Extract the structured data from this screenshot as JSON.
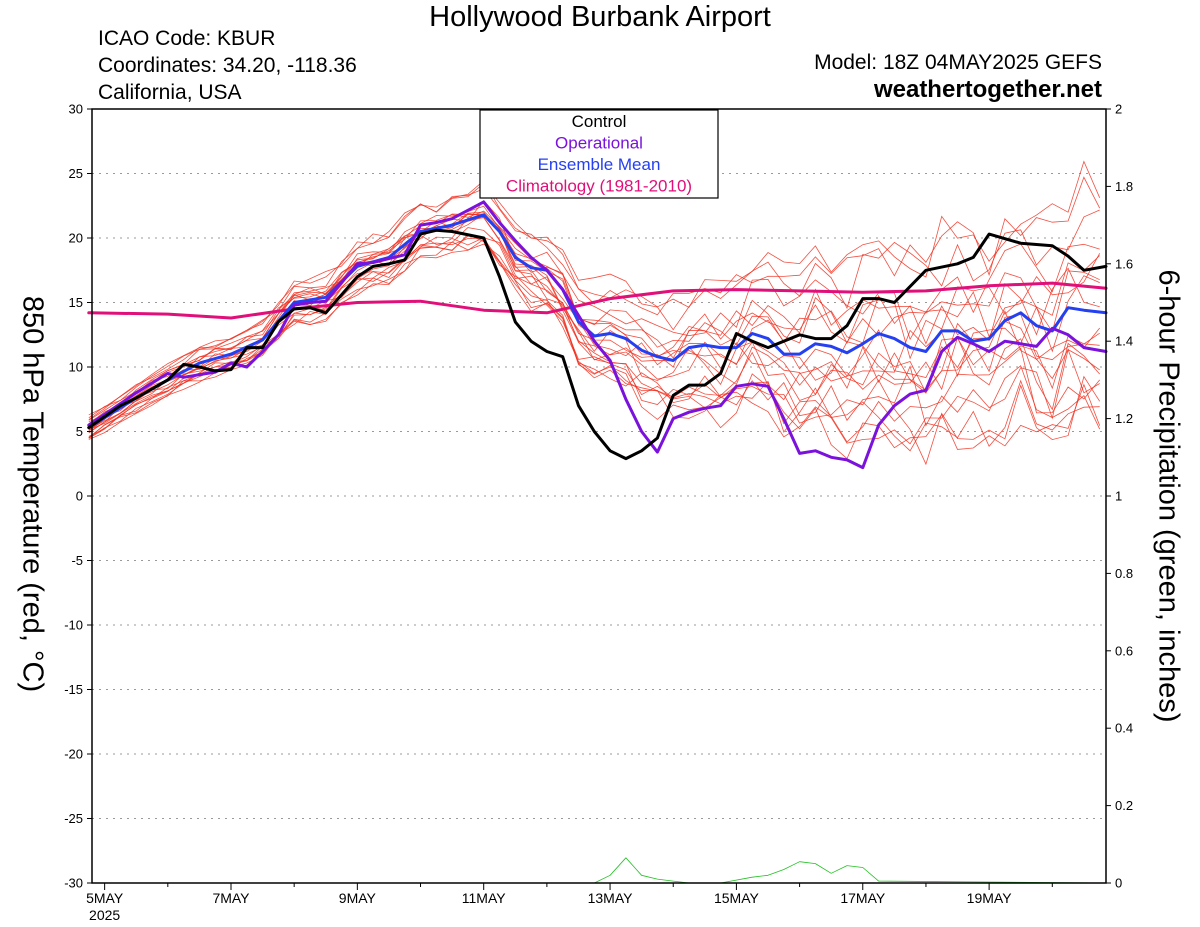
{
  "header": {
    "title": "Hollywood Burbank Airport",
    "icao": "ICAO Code: KBUR",
    "coordinates": "Coordinates: 34.20, -118.36",
    "region": "California, USA",
    "model": "Model: 18Z 04MAY2025 GEFS",
    "site": "weathertogether.net"
  },
  "colors": {
    "control": "#000000",
    "operational": "#7a12dc",
    "ensemble_mean": "#2440f0",
    "climatology": "#e0107a",
    "members": "#f03020",
    "precip": "#22c022",
    "site": "#1e90ff",
    "grid": "#9a9a9a"
  },
  "chart_data": {
    "type": "line",
    "xlabel": "",
    "ylabel": "850 hPa Temperature (red, °C)",
    "y2label": "6-hour Precipitation (green, inches)",
    "x_unit": "days since 5 May 2025 00Z",
    "xlim": [
      -0.2,
      15.85
    ],
    "ylim": [
      -30,
      30
    ],
    "y2lim": [
      0,
      2
    ],
    "grid": true,
    "legend_position": "top-center",
    "x_ticks": [
      {
        "x": 0,
        "label": "5MAY",
        "sublabel": "2025"
      },
      {
        "x": 2,
        "label": "7MAY"
      },
      {
        "x": 4,
        "label": "9MAY"
      },
      {
        "x": 6,
        "label": "11MAY"
      },
      {
        "x": 8,
        "label": "13MAY"
      },
      {
        "x": 10,
        "label": "15MAY"
      },
      {
        "x": 12,
        "label": "17MAY"
      },
      {
        "x": 14,
        "label": "19MAY"
      }
    ],
    "y_ticks": [
      "-30",
      "-25",
      "-20",
      "-15",
      "-10",
      "-5",
      "0",
      "5",
      "10",
      "15",
      "20",
      "25",
      "30"
    ],
    "y2_ticks": [
      "0",
      "0.2",
      "0.4",
      "0.6",
      "0.8",
      "1",
      "1.2",
      "1.4",
      "1.6",
      "1.8",
      "2"
    ],
    "legend": [
      {
        "label": "Control",
        "color": "#000000"
      },
      {
        "label": "Operational",
        "color": "#7a12dc"
      },
      {
        "label": "Ensemble Mean",
        "color": "#2440f0"
      },
      {
        "label": "Climatology (1981-2010)",
        "color": "#e0107a"
      }
    ],
    "series": [
      {
        "name": "Climatology (1981-2010)",
        "axis": "left",
        "width": 3,
        "x": [
          -0.25,
          1,
          2,
          3,
          4,
          5,
          6,
          7,
          8,
          9,
          10,
          11,
          12,
          13,
          14,
          15,
          15.85
        ],
        "y": [
          14.2,
          14.1,
          13.8,
          14.5,
          15.0,
          15.1,
          14.4,
          14.2,
          15.3,
          15.9,
          16.0,
          15.9,
          15.8,
          15.9,
          16.3,
          16.5,
          16.1
        ]
      },
      {
        "name": "Control",
        "axis": "left",
        "width": 3,
        "x": [
          -0.25,
          0.25,
          0.5,
          1,
          1.25,
          1.5,
          1.75,
          2,
          2.25,
          2.5,
          2.75,
          3,
          3.25,
          3.5,
          4,
          4.25,
          4.5,
          4.75,
          5,
          5.25,
          5.5,
          6,
          6.25,
          6.5,
          6.75,
          7,
          7.25,
          7.5,
          7.75,
          8,
          8.25,
          8.5,
          8.75,
          9,
          9.25,
          9.5,
          9.75,
          10,
          10.25,
          10.5,
          11,
          11.25,
          11.5,
          11.75,
          12,
          12.25,
          12.5,
          13,
          13.5,
          13.75,
          14,
          14.5,
          14.75,
          15,
          15.25,
          15.5,
          15.85
        ],
        "y": [
          5.3,
          7.0,
          7.6,
          9.0,
          10.2,
          10.0,
          9.7,
          9.8,
          11.5,
          11.5,
          13.5,
          14.5,
          14.6,
          14.2,
          17.0,
          17.8,
          18.0,
          18.3,
          20.3,
          20.6,
          20.5,
          20.0,
          17.0,
          13.5,
          12.0,
          11.2,
          10.8,
          7.0,
          5.0,
          3.5,
          2.9,
          3.5,
          4.5,
          7.8,
          8.6,
          8.6,
          9.5,
          12.6,
          12.0,
          11.5,
          12.5,
          12.2,
          12.2,
          13.2,
          15.3,
          15.3,
          15.0,
          17.5,
          18.0,
          18.5,
          20.3,
          19.6,
          19.5,
          19.4,
          18.6,
          17.5,
          17.8
        ]
      },
      {
        "name": "Operational",
        "axis": "left",
        "width": 3,
        "x": [
          -0.25,
          0.5,
          1,
          1.25,
          1.5,
          1.75,
          2,
          2.25,
          2.5,
          2.75,
          3,
          3.25,
          3.5,
          4,
          4.25,
          4.5,
          4.75,
          5,
          5.25,
          5.5,
          6,
          6.25,
          6.5,
          6.75,
          7,
          7.25,
          7.5,
          7.75,
          8,
          8.25,
          8.5,
          8.75,
          9,
          9.25,
          9.5,
          9.75,
          10,
          10.25,
          10.5,
          10.75,
          11,
          11.25,
          11.5,
          11.75,
          12,
          12.25,
          12.5,
          12.75,
          13,
          13.25,
          13.5,
          13.75,
          14,
          14.25,
          14.5,
          14.75,
          15,
          15.25,
          15.5,
          15.85
        ],
        "y": [
          5.5,
          8.0,
          9.5,
          9.2,
          9.4,
          9.6,
          10.3,
          10.0,
          11.2,
          12.5,
          14.8,
          15.0,
          15.1,
          18.0,
          18.1,
          18.4,
          18.7,
          21.0,
          21.2,
          21.5,
          22.8,
          21.2,
          19.8,
          18.5,
          17.5,
          16.0,
          14.0,
          12.0,
          10.5,
          7.5,
          5.0,
          3.4,
          6.0,
          6.5,
          6.8,
          7.0,
          8.5,
          8.7,
          8.5,
          6.0,
          3.3,
          3.5,
          3.0,
          2.8,
          2.2,
          5.5,
          7.0,
          7.9,
          8.2,
          11.2,
          12.3,
          11.8,
          11.2,
          12.0,
          11.8,
          11.6,
          13.0,
          12.5,
          11.5,
          11.2
        ]
      },
      {
        "name": "Ensemble Mean",
        "axis": "left",
        "width": 3,
        "x": [
          -0.25,
          0.5,
          1,
          1.5,
          2,
          2.5,
          3,
          3.5,
          4,
          4.5,
          5,
          5.5,
          6,
          6.25,
          6.5,
          6.75,
          7,
          7.25,
          7.5,
          7.75,
          8,
          8.25,
          8.5,
          8.75,
          9,
          9.25,
          9.5,
          9.75,
          10,
          10.25,
          10.5,
          10.75,
          11,
          11.25,
          11.5,
          11.75,
          12,
          12.25,
          12.5,
          12.75,
          13,
          13.25,
          13.5,
          13.75,
          14,
          14.25,
          14.5,
          14.75,
          15,
          15.25,
          15.5,
          15.85
        ],
        "y": [
          5.3,
          7.6,
          9.0,
          10.3,
          11.0,
          12.1,
          15.0,
          15.4,
          17.8,
          18.5,
          20.5,
          21.0,
          21.8,
          20.5,
          18.5,
          17.7,
          17.5,
          16.0,
          13.5,
          12.4,
          12.6,
          12.2,
          11.3,
          10.8,
          10.5,
          11.5,
          11.7,
          11.5,
          11.5,
          12.6,
          12.2,
          11.0,
          11.0,
          11.8,
          11.6,
          11.1,
          11.8,
          12.6,
          12.2,
          11.5,
          11.2,
          12.8,
          12.8,
          12.0,
          12.2,
          13.6,
          14.2,
          13.2,
          12.8,
          14.6,
          14.4,
          14.2
        ]
      },
      {
        "name": "Precipitation members",
        "axis": "right",
        "width": 0.8,
        "x": [
          -0.25,
          7.5,
          7.75,
          8.0,
          8.25,
          8.5,
          8.75,
          9.0,
          9.25,
          9.75,
          10.25,
          10.5,
          10.75,
          11.0,
          11.25,
          11.5,
          11.75,
          12.0,
          12.25,
          15.85
        ],
        "y": [
          0,
          0,
          0,
          0.02,
          0.065,
          0.02,
          0.01,
          0.005,
          0,
          0,
          0.015,
          0.02,
          0.035,
          0.055,
          0.05,
          0.025,
          0.045,
          0.04,
          0.005,
          0
        ]
      }
    ]
  }
}
